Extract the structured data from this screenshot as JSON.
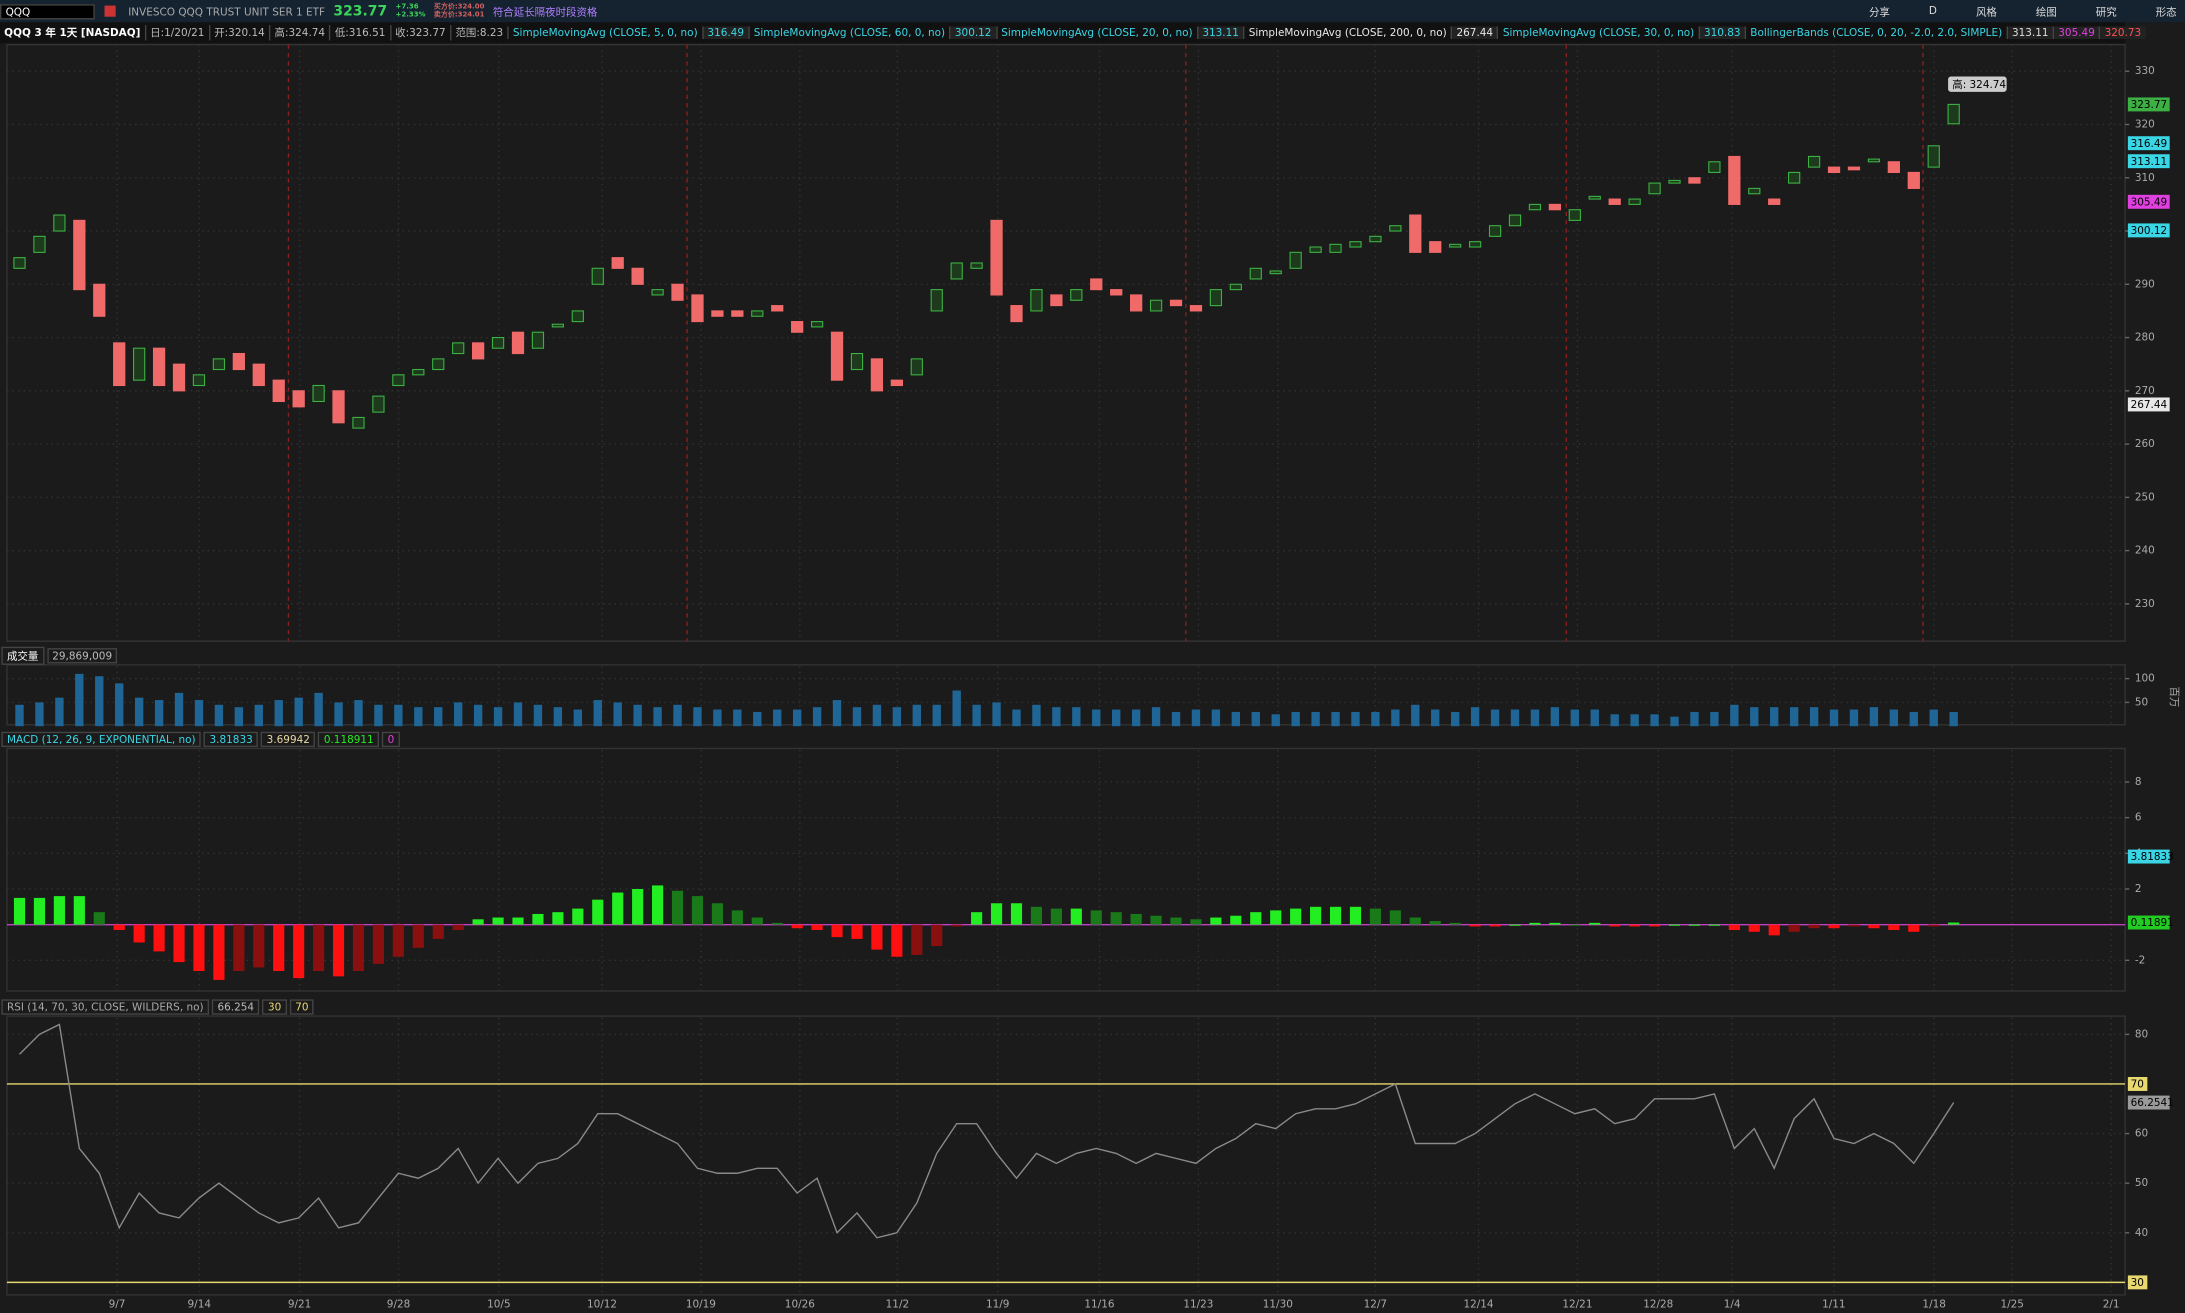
{
  "toolbar": {
    "symbol": "QQQ",
    "description": "INVESCO QQQ TRUST UNIT SER 1 ETF",
    "last": "323.77",
    "change": "+7.36",
    "change_pct": "+2.33%",
    "bid": "买方价:324.00",
    "ask": "卖方价:324.01",
    "extended": "符合延长隔夜时段资格",
    "buttons": [
      "分享",
      "D",
      "风格",
      "绘图",
      "研究",
      "形态"
    ]
  },
  "time_axis": {
    "labels": [
      "9/7",
      "9/14",
      "9/21",
      "9/28",
      "10/5",
      "10/12",
      "10/19",
      "10/26",
      "11/2",
      "11/9",
      "11/16",
      "11/23",
      "11/30",
      "12/7",
      "12/14",
      "12/21",
      "12/28",
      "1/4",
      "1/11",
      "1/18",
      "1/25",
      "2/1"
    ]
  },
  "chart_data": [
    {
      "type": "candlestick",
      "title": "QQQ 3 年 1天 [NASDAQ]",
      "info": [
        "日:1/20/21",
        "开:320.14",
        "高:324.74",
        "低:316.51",
        "收:323.77",
        "范围:8.23"
      ],
      "studies": [
        {
          "name": "SimpleMovingAvg (CLOSE, 5, 0, no)",
          "values": [
            316.49
          ],
          "color": "#3ad6e6"
        },
        {
          "name": "SimpleMovingAvg (CLOSE, 60, 0, no)",
          "values": [
            300.12
          ],
          "color": "#3ad6e6"
        },
        {
          "name": "SimpleMovingAvg (CLOSE, 20, 0, no)",
          "values": [
            313.11
          ],
          "color": "#3ad6e6"
        },
        {
          "name": "SimpleMovingAvg (CLOSE, 200, 0, no)",
          "values": [
            267.44
          ],
          "color": "#e8e8e8"
        },
        {
          "name": "SimpleMovingAvg (CLOSE, 30, 0, no)",
          "values": [
            310.83
          ],
          "color": "#3ad6e6"
        },
        {
          "name": "BollingerBands (CLOSE, 0, 20, -2.0, 2.0, SIMPLE)",
          "values": [
            313.11,
            305.49,
            320.73
          ],
          "color": "#3ad6e6"
        }
      ],
      "high_label": "高: 324.74",
      "candles": [
        [
          293,
          295
        ],
        [
          296,
          299
        ],
        [
          300,
          303
        ],
        [
          302,
          289
        ],
        [
          290,
          284
        ],
        [
          279,
          271
        ],
        [
          272,
          278
        ],
        [
          278,
          271
        ],
        [
          275,
          270
        ],
        [
          271,
          273
        ],
        [
          274,
          276
        ],
        [
          277,
          274
        ],
        [
          275,
          271
        ],
        [
          272,
          268
        ],
        [
          270,
          267
        ],
        [
          268,
          271
        ],
        [
          270,
          264
        ],
        [
          263,
          265
        ],
        [
          266,
          269
        ],
        [
          271,
          273
        ],
        [
          273,
          274
        ],
        [
          274,
          276
        ],
        [
          277,
          279
        ],
        [
          279,
          276
        ],
        [
          278,
          280
        ],
        [
          281,
          277
        ],
        [
          278,
          281
        ],
        [
          282,
          282.5
        ],
        [
          283,
          285
        ],
        [
          290,
          293
        ],
        [
          295,
          293
        ],
        [
          293,
          290
        ],
        [
          288,
          289
        ],
        [
          290,
          287
        ],
        [
          288,
          283
        ],
        [
          285,
          284
        ],
        [
          285,
          284
        ],
        [
          284,
          285
        ],
        [
          286,
          285
        ],
        [
          283,
          281
        ],
        [
          282,
          283
        ],
        [
          281,
          272
        ],
        [
          274,
          277
        ],
        [
          276,
          270
        ],
        [
          272,
          271
        ],
        [
          273,
          276
        ],
        [
          285,
          289
        ],
        [
          291,
          294
        ],
        [
          293,
          294
        ],
        [
          302,
          288
        ],
        [
          286,
          283
        ],
        [
          285,
          289
        ],
        [
          288,
          286
        ],
        [
          287,
          289
        ],
        [
          291,
          289
        ],
        [
          289,
          288
        ],
        [
          288,
          285
        ],
        [
          285,
          287
        ],
        [
          287,
          286
        ],
        [
          286,
          285
        ],
        [
          286,
          289
        ],
        [
          289,
          290
        ],
        [
          291,
          293
        ],
        [
          292,
          292.5
        ],
        [
          293,
          296
        ],
        [
          296,
          297
        ],
        [
          296,
          297.5
        ],
        [
          297,
          298
        ],
        [
          298,
          299
        ],
        [
          300,
          301
        ],
        [
          303,
          296
        ],
        [
          298,
          296
        ],
        [
          297,
          297.5
        ],
        [
          297,
          298
        ],
        [
          299,
          301
        ],
        [
          301,
          303
        ],
        [
          304,
          305
        ],
        [
          305,
          304
        ],
        [
          302,
          304
        ],
        [
          306,
          306.5
        ],
        [
          306,
          305
        ],
        [
          305,
          306
        ],
        [
          307,
          309
        ],
        [
          309,
          309.5
        ],
        [
          310,
          309
        ],
        [
          311,
          313
        ],
        [
          314,
          305
        ],
        [
          307,
          308
        ],
        [
          306,
          305
        ],
        [
          309,
          311
        ],
        [
          312,
          314
        ],
        [
          312,
          311
        ],
        [
          312,
          311.5
        ],
        [
          313,
          313.5
        ],
        [
          313,
          311
        ],
        [
          311,
          308
        ],
        [
          312,
          316
        ],
        [
          320.14,
          323.77
        ]
      ],
      "ylim": [
        223,
        335
      ],
      "yticks": [
        230,
        240,
        250,
        260,
        270,
        280,
        290,
        300,
        310,
        320,
        330
      ],
      "badges": [
        {
          "value": 323.77,
          "color": "#3cb043"
        },
        {
          "value": 316.49,
          "color": "#3ad6e6"
        },
        {
          "value": 313.11,
          "color": "#3ad6e6"
        },
        {
          "value": 305.49,
          "color": "#e040e0"
        },
        {
          "value": 300.12,
          "color": "#3ad6e6"
        },
        {
          "value": 267.44,
          "color": "#e8e8e8"
        }
      ]
    },
    {
      "type": "bar",
      "title": "成交量",
      "current_label": "29,869,009",
      "unit": "百万",
      "color": "#1f6696",
      "values": [
        45,
        50,
        60,
        110,
        105,
        90,
        60,
        55,
        70,
        55,
        45,
        40,
        45,
        55,
        60,
        70,
        50,
        55,
        45,
        45,
        40,
        40,
        50,
        45,
        40,
        50,
        45,
        40,
        35,
        55,
        50,
        45,
        40,
        45,
        40,
        35,
        35,
        30,
        35,
        35,
        40,
        55,
        40,
        45,
        40,
        45,
        45,
        75,
        45,
        50,
        35,
        45,
        40,
        40,
        35,
        35,
        35,
        40,
        30,
        35,
        35,
        30,
        30,
        25,
        30,
        30,
        30,
        30,
        30,
        35,
        45,
        35,
        30,
        40,
        35,
        35,
        35,
        40,
        35,
        35,
        25,
        25,
        25,
        20,
        30,
        30,
        45,
        40,
        40,
        40,
        40,
        35,
        35,
        40,
        35,
        30,
        35,
        29.869009
      ],
      "ylim": [
        0,
        126
      ],
      "yticks": [
        50,
        100
      ]
    },
    {
      "type": "histogram",
      "title": "MACD (12, 26, 9, EXPONENTIAL, no)",
      "legend_values": [
        3.81833,
        3.69942
      ],
      "zero": 0,
      "values": [
        1.5,
        1.5,
        1.6,
        1.6,
        0.7,
        -0.3,
        -1.0,
        -1.5,
        -2.1,
        -2.6,
        -3.1,
        -2.6,
        -2.4,
        -2.6,
        -3.0,
        -2.6,
        -2.9,
        -2.6,
        -2.2,
        -1.8,
        -1.3,
        -0.8,
        -0.3,
        0.3,
        0.4,
        0.4,
        0.6,
        0.7,
        0.9,
        1.4,
        1.8,
        2.0,
        2.2,
        1.9,
        1.6,
        1.2,
        0.8,
        0.4,
        0.1,
        -0.2,
        -0.3,
        -0.7,
        -0.8,
        -1.4,
        -1.8,
        -1.7,
        -1.2,
        -0.1,
        0.7,
        1.2,
        1.2,
        1.0,
        0.9,
        0.9,
        0.8,
        0.7,
        0.6,
        0.5,
        0.4,
        0.3,
        0.4,
        0.5,
        0.7,
        0.8,
        0.9,
        1.0,
        1.0,
        1.0,
        0.9,
        0.8,
        0.4,
        0.2,
        0.1,
        -0.1,
        -0.1,
        0.0,
        0.1,
        0.1,
        0.0,
        0.1,
        -0.1,
        -0.1,
        -0.1,
        0.0,
        0.0,
        0.0,
        -0.3,
        -0.4,
        -0.6,
        -0.4,
        -0.2,
        -0.2,
        -0.1,
        -0.2,
        -0.3,
        -0.4,
        -0.1,
        0.118911
      ],
      "ylim": [
        -3.8,
        9.8
      ],
      "yticks": [
        -2,
        2,
        4,
        6,
        8
      ],
      "badges": [
        {
          "value": 3.81833,
          "color": "#3ad6e6"
        },
        {
          "value": 0.11891,
          "color": "#22cc22"
        }
      ]
    },
    {
      "type": "line",
      "title": "RSI (14, 70, 30, CLOSE, WILDERS, no)",
      "color": "#8a8a8a",
      "levels": [
        30,
        70
      ],
      "values": [
        76,
        80,
        82,
        57,
        52,
        41,
        48,
        44,
        43,
        47,
        50,
        47,
        44,
        42,
        43,
        47,
        41,
        42,
        47,
        52,
        51,
        53,
        57,
        50,
        55,
        50,
        54,
        55,
        58,
        64,
        64,
        62,
        60,
        58,
        53,
        52,
        52,
        53,
        53,
        48,
        51,
        40,
        44,
        39,
        40,
        46,
        56,
        62,
        62,
        56,
        51,
        56,
        54,
        56,
        57,
        56,
        54,
        56,
        55,
        54,
        57,
        59,
        62,
        61,
        64,
        65,
        65,
        66,
        68,
        70,
        58,
        58,
        58,
        60,
        63,
        66,
        68,
        66,
        64,
        65,
        62,
        63,
        67,
        67,
        67,
        68,
        57,
        61,
        53,
        63,
        67,
        59,
        58,
        60,
        58,
        54,
        60,
        66.254
      ],
      "ylim": [
        27.2,
        83.4
      ],
      "yticks": [
        40,
        50,
        60,
        80
      ],
      "badges": [
        {
          "value": 66.2541,
          "color": "#9a9a9a"
        }
      ]
    }
  ]
}
